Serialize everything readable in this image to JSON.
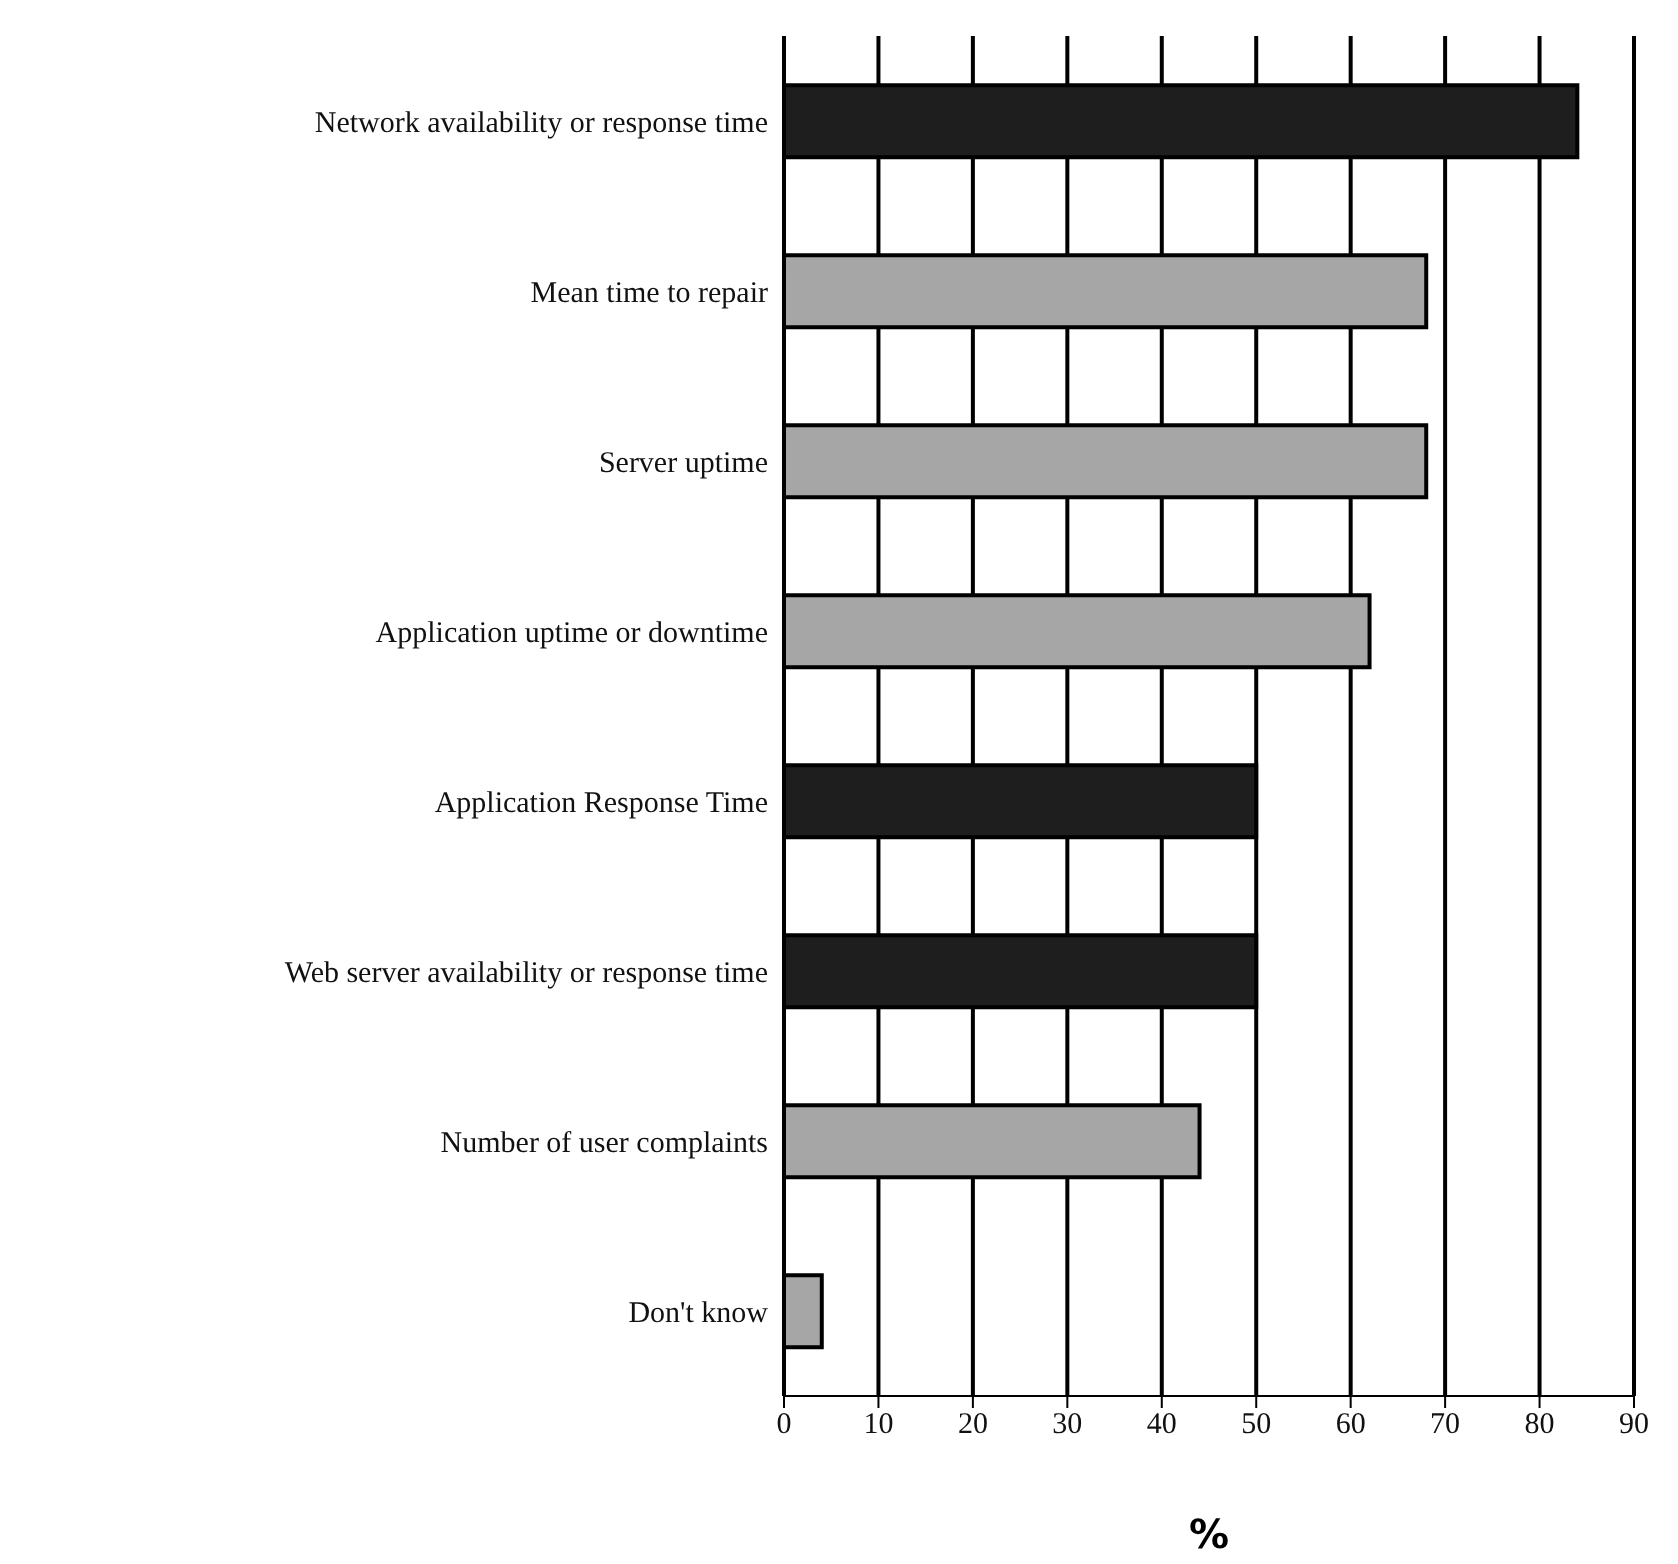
{
  "chart_data": {
    "type": "bar",
    "orientation": "horizontal",
    "categories": [
      "Network availability or response time",
      "Mean time to repair",
      "Server uptime",
      "Application uptime or downtime",
      "Application Response Time",
      "Web server availability or response time",
      "Number of user complaints",
      "Don't know"
    ],
    "values": [
      84,
      68,
      68,
      62,
      50,
      50,
      44,
      4
    ],
    "colors": [
      "#1e1e1e",
      "#a6a6a6",
      "#a6a6a6",
      "#a6a6a6",
      "#1e1e1e",
      "#1e1e1e",
      "#a6a6a6",
      "#a6a6a6"
    ],
    "xlabel": "%",
    "xlim": [
      0,
      90
    ],
    "xticks": [
      0,
      10,
      20,
      30,
      40,
      50,
      60,
      70,
      80,
      90
    ],
    "grid": "x"
  }
}
